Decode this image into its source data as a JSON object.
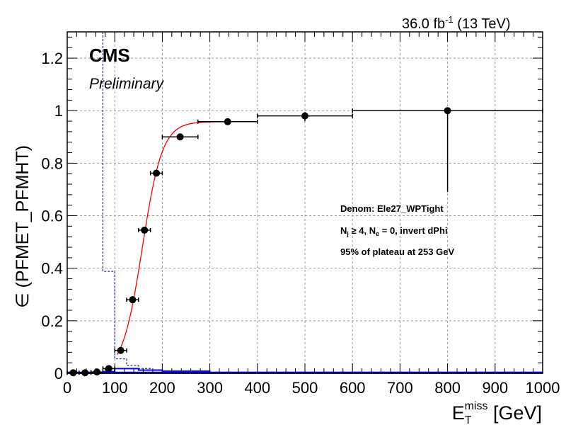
{
  "lumi_label": "36.0 fb",
  "lumi_exponent": "-1",
  "lumi_energy": " (13 TeV)",
  "experiment": "CMS",
  "status": "Preliminary",
  "annotations": {
    "line1": "Denom: Ele27_WPTight",
    "line2_base": "N",
    "line2_sub": "j",
    "line2_mid": " ≥ 4, N",
    "line2_sub2": "e",
    "line2_end": " = 0, invert dPhi",
    "line3": "95% of plateau at 253 GeV"
  },
  "ylabel": "∈ (PFMET_PFMHT)",
  "xlabel_main": "E",
  "xlabel_sub": "T",
  "xlabel_sup": "miss",
  "xlabel_unit": " [GeV]",
  "chart_data": {
    "type": "scatter",
    "xlim": [
      0,
      1000
    ],
    "ylim": [
      0,
      1.3
    ],
    "xticks": [
      0,
      100,
      200,
      300,
      400,
      500,
      600,
      700,
      800,
      900,
      1000
    ],
    "yticks": [
      0,
      0.2,
      0.4,
      0.6,
      0.8,
      1,
      1.2
    ],
    "grid": true,
    "series": [
      {
        "kind": "efficiency_points",
        "color": "#000000",
        "points": [
          {
            "x": 12.5,
            "xerr": 12.5,
            "y": 0.002,
            "ylo": 0.002,
            "yhi": 0.002
          },
          {
            "x": 37.5,
            "xerr": 12.5,
            "y": 0.002,
            "ylo": 0.002,
            "yhi": 0.002
          },
          {
            "x": 62.5,
            "xerr": 12.5,
            "y": 0.005,
            "ylo": 0.004,
            "yhi": 0.005
          },
          {
            "x": 87.5,
            "xerr": 12.5,
            "y": 0.018,
            "ylo": 0.006,
            "yhi": 0.006
          },
          {
            "x": 112.5,
            "xerr": 12.5,
            "y": 0.087,
            "ylo": 0.01,
            "yhi": 0.01
          },
          {
            "x": 137.5,
            "xerr": 12.5,
            "y": 0.28,
            "ylo": 0.012,
            "yhi": 0.012
          },
          {
            "x": 162.5,
            "xerr": 12.5,
            "y": 0.545,
            "ylo": 0.012,
            "yhi": 0.012
          },
          {
            "x": 187.5,
            "xerr": 12.5,
            "y": 0.762,
            "ylo": 0.012,
            "yhi": 0.012
          },
          {
            "x": 237.5,
            "xerr": 37.5,
            "y": 0.9,
            "ylo": 0.01,
            "yhi": 0.01
          },
          {
            "x": 337.5,
            "xerr": 62.5,
            "y": 0.958,
            "ylo": 0.008,
            "yhi": 0.008
          },
          {
            "x": 500,
            "xerr": 100,
            "y": 0.98,
            "ylo": 0.02,
            "yhi": 0.015
          },
          {
            "x": 800,
            "xerr": 200,
            "y": 1.0,
            "ylo": 0.31,
            "yhi": 0.0
          }
        ]
      },
      {
        "kind": "fit",
        "color": "#ff0000",
        "x_start": 105,
        "x_end": 400,
        "plateau": 0.958,
        "midpoint": 158,
        "width": 21
      },
      {
        "kind": "denominator_shape",
        "color": "#3333aa",
        "style": "dashed-step",
        "bins": [
          {
            "x0": 75,
            "x1": 100,
            "y": 0.388
          },
          {
            "x0": 100,
            "x1": 125,
            "y": 0.055
          },
          {
            "x0": 125,
            "x1": 150,
            "y": 0.03
          },
          {
            "x0": 150,
            "x1": 175,
            "y": 0.018
          },
          {
            "x0": 175,
            "x1": 200,
            "y": 0.012
          },
          {
            "x0": 200,
            "x1": 250,
            "y": 0.008
          },
          {
            "x0": 250,
            "x1": 300,
            "y": 0.005
          }
        ]
      },
      {
        "kind": "numerator_shape",
        "color": "#0000ff",
        "style": "solid-step",
        "bins": [
          {
            "x0": 75,
            "x1": 100,
            "y": 0.006
          },
          {
            "x0": 100,
            "x1": 150,
            "y": 0.018
          },
          {
            "x0": 150,
            "x1": 200,
            "y": 0.012
          },
          {
            "x0": 200,
            "x1": 300,
            "y": 0.008
          },
          {
            "x0": 300,
            "x1": 1000,
            "y": 0.003
          }
        ]
      }
    ]
  }
}
